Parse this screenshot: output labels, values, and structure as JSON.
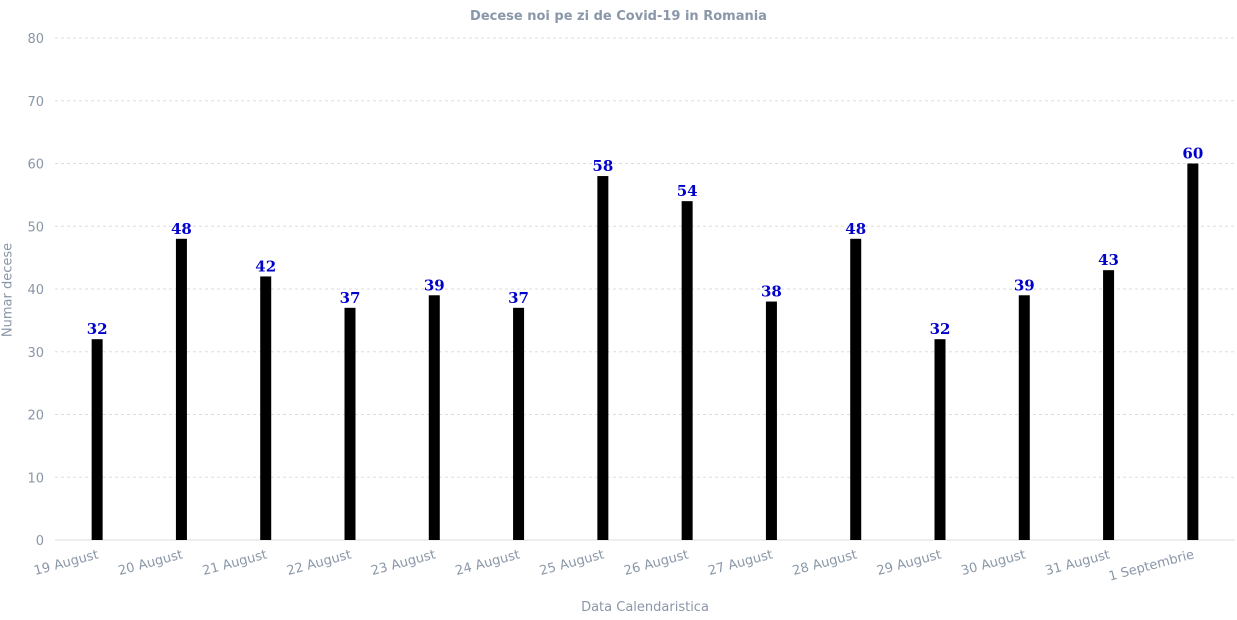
{
  "chart_data": {
    "type": "bar",
    "title": "Decese noi pe zi de Covid-19 in Romania",
    "xlabel": "Data Calendaristica",
    "ylabel": "Numar decese",
    "categories": [
      "19 August",
      "20 August",
      "21 August",
      "22 August",
      "23 August",
      "24 August",
      "25 August",
      "26 August",
      "27 August",
      "28 August",
      "29 August",
      "30 August",
      "31 August",
      "1 Septembrie"
    ],
    "values": [
      32,
      48,
      42,
      37,
      39,
      37,
      58,
      54,
      38,
      48,
      32,
      39,
      43,
      60
    ],
    "ylim": [
      0,
      80
    ],
    "yticks": [
      0,
      10,
      20,
      30,
      40,
      50,
      60,
      70,
      80
    ],
    "grid": true,
    "bar_color": "#000000",
    "label_color": "#0000cc",
    "axis_text_color": "#8a97a8",
    "grid_color": "#dddddd"
  }
}
